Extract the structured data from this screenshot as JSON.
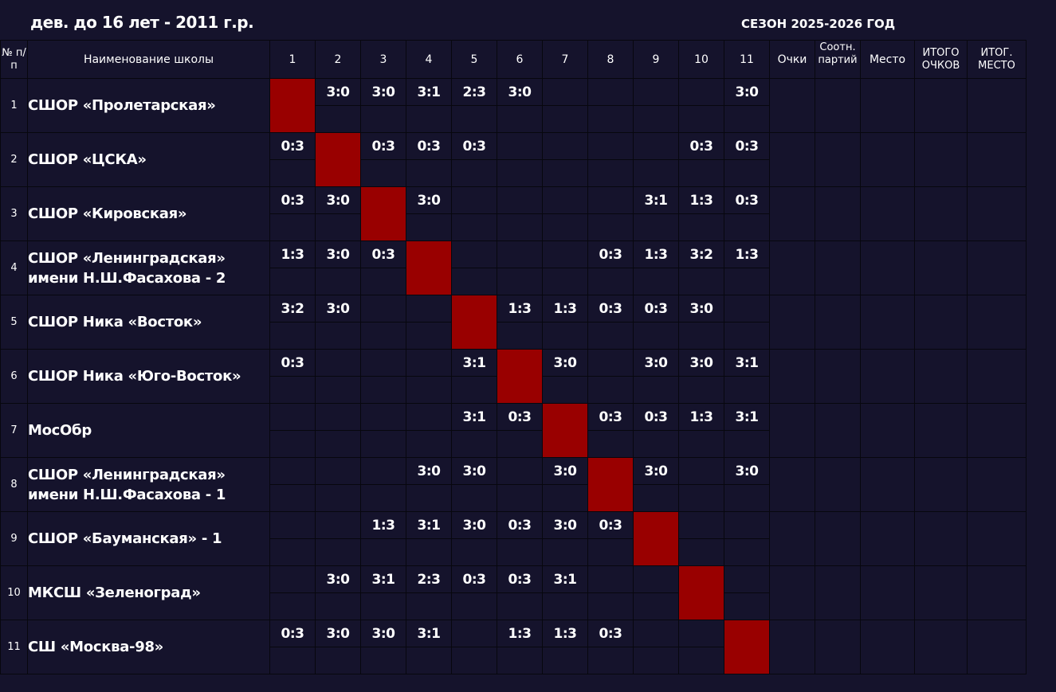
{
  "title": "дев. до 16 лет - 2011 г.р.",
  "season": "СЕЗОН 2025-2026 ГОД",
  "header": {
    "num": "№ п/п",
    "school": "Наименование школы",
    "cols": [
      "1",
      "2",
      "3",
      "4",
      "5",
      "6",
      "7",
      "8",
      "9",
      "10",
      "11"
    ],
    "points": "Очки",
    "ratio": "Соотн. партий",
    "place": "Место",
    "total_points": "ИТОГО ОЧКОВ",
    "total_place": "ИТОГ. МЕСТО"
  },
  "colors": {
    "background": "#15132c",
    "diagonal": "#990000",
    "border": "#07070e"
  },
  "rows": [
    {
      "num": "1",
      "school": [
        "СШОР «Пролетарская»"
      ],
      "scores": [
        "",
        "3:0",
        "3:0",
        "3:1",
        "2:3",
        "3:0",
        "",
        "",
        "",
        "",
        "3:0"
      ]
    },
    {
      "num": "2",
      "school": [
        "СШОР «ЦСКА»"
      ],
      "scores": [
        "0:3",
        "",
        "0:3",
        "0:3",
        "0:3",
        "",
        "",
        "",
        "",
        "0:3",
        "0:3"
      ]
    },
    {
      "num": "3",
      "school": [
        "СШОР «Кировская»"
      ],
      "scores": [
        "0:3",
        "3:0",
        "",
        "3:0",
        "",
        "",
        "",
        "",
        "3:1",
        "1:3",
        "0:3"
      ]
    },
    {
      "num": "4",
      "school": [
        "СШОР «Ленинградская»",
        "имени Н.Ш.Фасахова - 2"
      ],
      "scores": [
        "1:3",
        "3:0",
        "0:3",
        "",
        "",
        "",
        "",
        "0:3",
        "1:3",
        "3:2",
        "1:3"
      ]
    },
    {
      "num": "5",
      "school": [
        "СШОР Ника «Восток»"
      ],
      "scores": [
        "3:2",
        "3:0",
        "",
        "",
        "",
        "1:3",
        "1:3",
        "0:3",
        "0:3",
        "3:0",
        ""
      ]
    },
    {
      "num": "6",
      "school": [
        "СШОР Ника «Юго-Восток»"
      ],
      "scores": [
        "0:3",
        "",
        "",
        "",
        "3:1",
        "",
        "3:0",
        "",
        "3:0",
        "3:0",
        "3:1"
      ]
    },
    {
      "num": "7",
      "school": [
        "МосОбр"
      ],
      "scores": [
        "",
        "",
        "",
        "",
        "3:1",
        "0:3",
        "",
        "0:3",
        "0:3",
        "1:3",
        "3:1"
      ]
    },
    {
      "num": "8",
      "school": [
        "СШОР «Ленинградская»",
        "имени Н.Ш.Фасахова - 1"
      ],
      "scores": [
        "",
        "",
        "",
        "3:0",
        "3:0",
        "",
        "3:0",
        "",
        "3:0",
        "",
        "3:0"
      ]
    },
    {
      "num": "9",
      "school": [
        "СШОР «Бауманская» - 1"
      ],
      "scores": [
        "",
        "",
        "1:3",
        "3:1",
        "3:0",
        "0:3",
        "3:0",
        "0:3",
        "",
        "",
        ""
      ]
    },
    {
      "num": "10",
      "school": [
        "МКСШ «Зеленоград»"
      ],
      "scores": [
        "",
        "3:0",
        "3:1",
        "2:3",
        "0:3",
        "0:3",
        "3:1",
        "",
        "",
        "",
        ""
      ]
    },
    {
      "num": "11",
      "school": [
        "СШ «Москва-98»"
      ],
      "scores": [
        "0:3",
        "3:0",
        "3:0",
        "3:1",
        "",
        "1:3",
        "1:3",
        "0:3",
        "",
        "",
        ""
      ]
    }
  ]
}
